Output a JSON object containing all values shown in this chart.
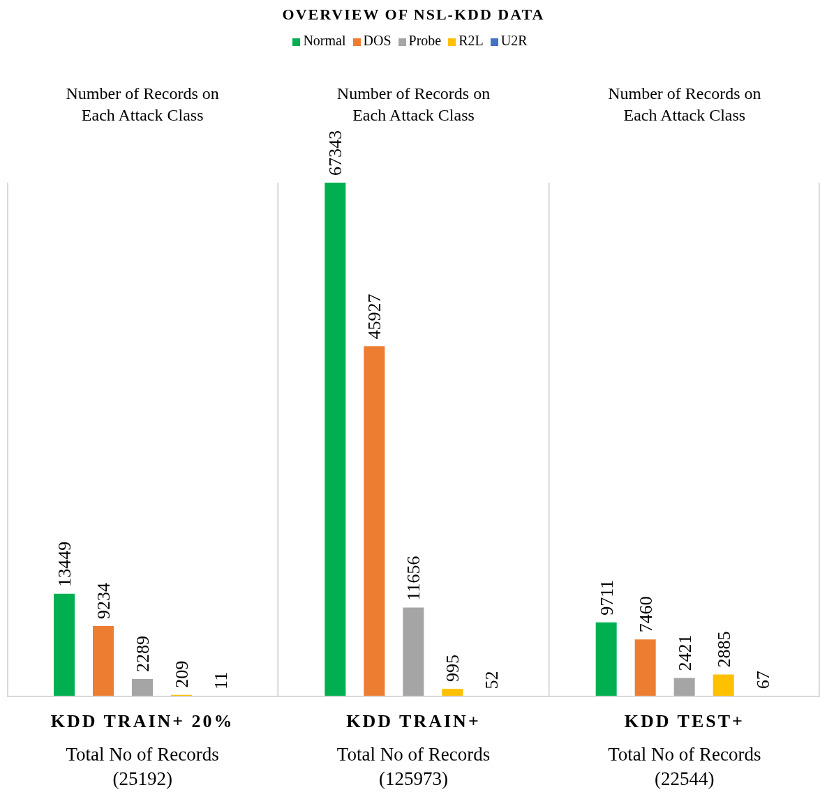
{
  "chart_data": {
    "type": "bar",
    "title": "OVERVIEW OF NSL-KDD DATA",
    "categories": [
      "KDD TRAIN+ 20%",
      "KDD TRAIN+",
      "KDD TEST+"
    ],
    "legend": "top",
    "data_labels": true,
    "grid": "x",
    "annotations": [
      "Number of Records on Each Attack Class",
      "Number of Records on Each Attack Class",
      "Number of Records on Each Attack Class",
      "Total No of Records (25192)",
      "Total No of Records (125973)",
      "Total No of Records (22544)"
    ],
    "series": [
      {
        "name": "Normal",
        "color": "#00b050",
        "values": [
          13449,
          67343,
          9711
        ]
      },
      {
        "name": "DOS",
        "color": "#ed7d31",
        "values": [
          9234,
          45927,
          7460
        ]
      },
      {
        "name": "Probe",
        "color": "#a5a5a5",
        "values": [
          2289,
          11656,
          2421
        ]
      },
      {
        "name": "R2L",
        "color": "#ffc000",
        "values": [
          209,
          995,
          2885
        ]
      },
      {
        "name": "U2R",
        "color": "#4472c4",
        "values": [
          11,
          52,
          67
        ]
      }
    ]
  }
}
